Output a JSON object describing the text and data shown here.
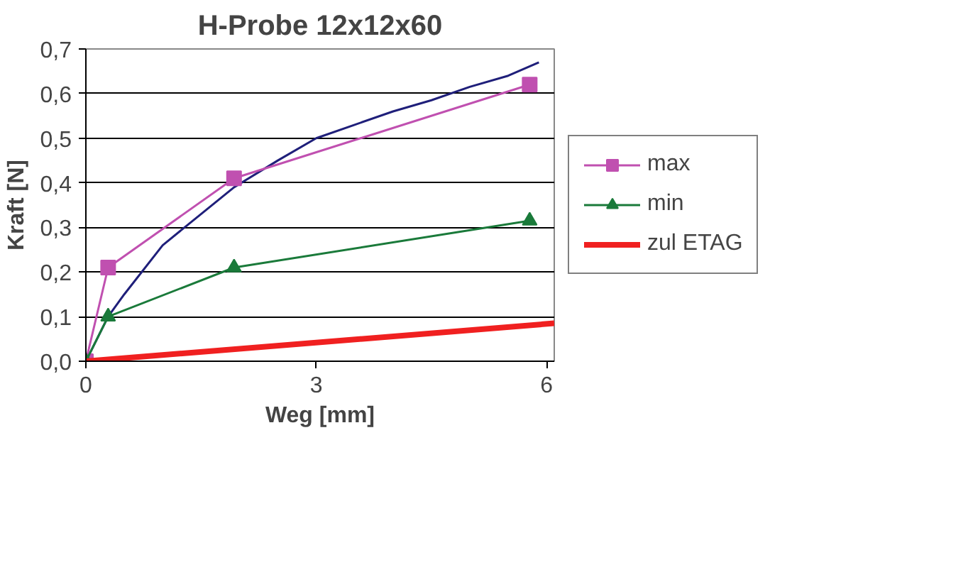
{
  "chart_data": {
    "type": "line",
    "title": "H-Probe 12x12x60",
    "xlabel": "Weg [mm]",
    "ylabel": "Kraft [N]",
    "xlim": [
      0,
      6.1
    ],
    "xticks": [
      0,
      3,
      6
    ],
    "ylim": [
      0,
      0.7
    ],
    "yticks": [
      {
        "value": 0,
        "label": "0,0"
      },
      {
        "value": 0.1,
        "label": "0,1"
      },
      {
        "value": 0.2,
        "label": "0,2"
      },
      {
        "value": 0.3,
        "label": "0,3"
      },
      {
        "value": 0.4,
        "label": "0,4"
      },
      {
        "value": 0.5,
        "label": "0,5"
      },
      {
        "value": 0.6,
        "label": "0,6"
      },
      {
        "value": 0.7,
        "label": "0,7"
      }
    ],
    "grid": "y",
    "legend": "right",
    "series": [
      {
        "color": "#1f1f7a",
        "marker": "none",
        "x": [
          0,
          0.29,
          0.5,
          1,
          1.5,
          1.93,
          2.5,
          3,
          3.5,
          4,
          4.5,
          5,
          5.5,
          5.9
        ],
        "values": [
          0,
          0.1,
          0.15,
          0.26,
          0.33,
          0.39,
          0.45,
          0.5,
          0.53,
          0.56,
          0.585,
          0.615,
          0.64,
          0.67
        ]
      },
      {
        "name": "max",
        "color": "#c050b0",
        "marker": "square",
        "x": [
          0,
          0.29,
          1.93,
          5.78
        ],
        "values": [
          0,
          0.21,
          0.41,
          0.62
        ]
      },
      {
        "name": "min",
        "color": "#1a7a3a",
        "marker": "triangle",
        "x": [
          0,
          0.29,
          1.93,
          5.78
        ],
        "values": [
          0,
          0.1,
          0.21,
          0.315
        ]
      },
      {
        "name": "zul ETAG",
        "color": "#f02020",
        "marker": "none",
        "x": [
          0,
          6.1
        ],
        "values": [
          0,
          0.085
        ]
      }
    ]
  }
}
